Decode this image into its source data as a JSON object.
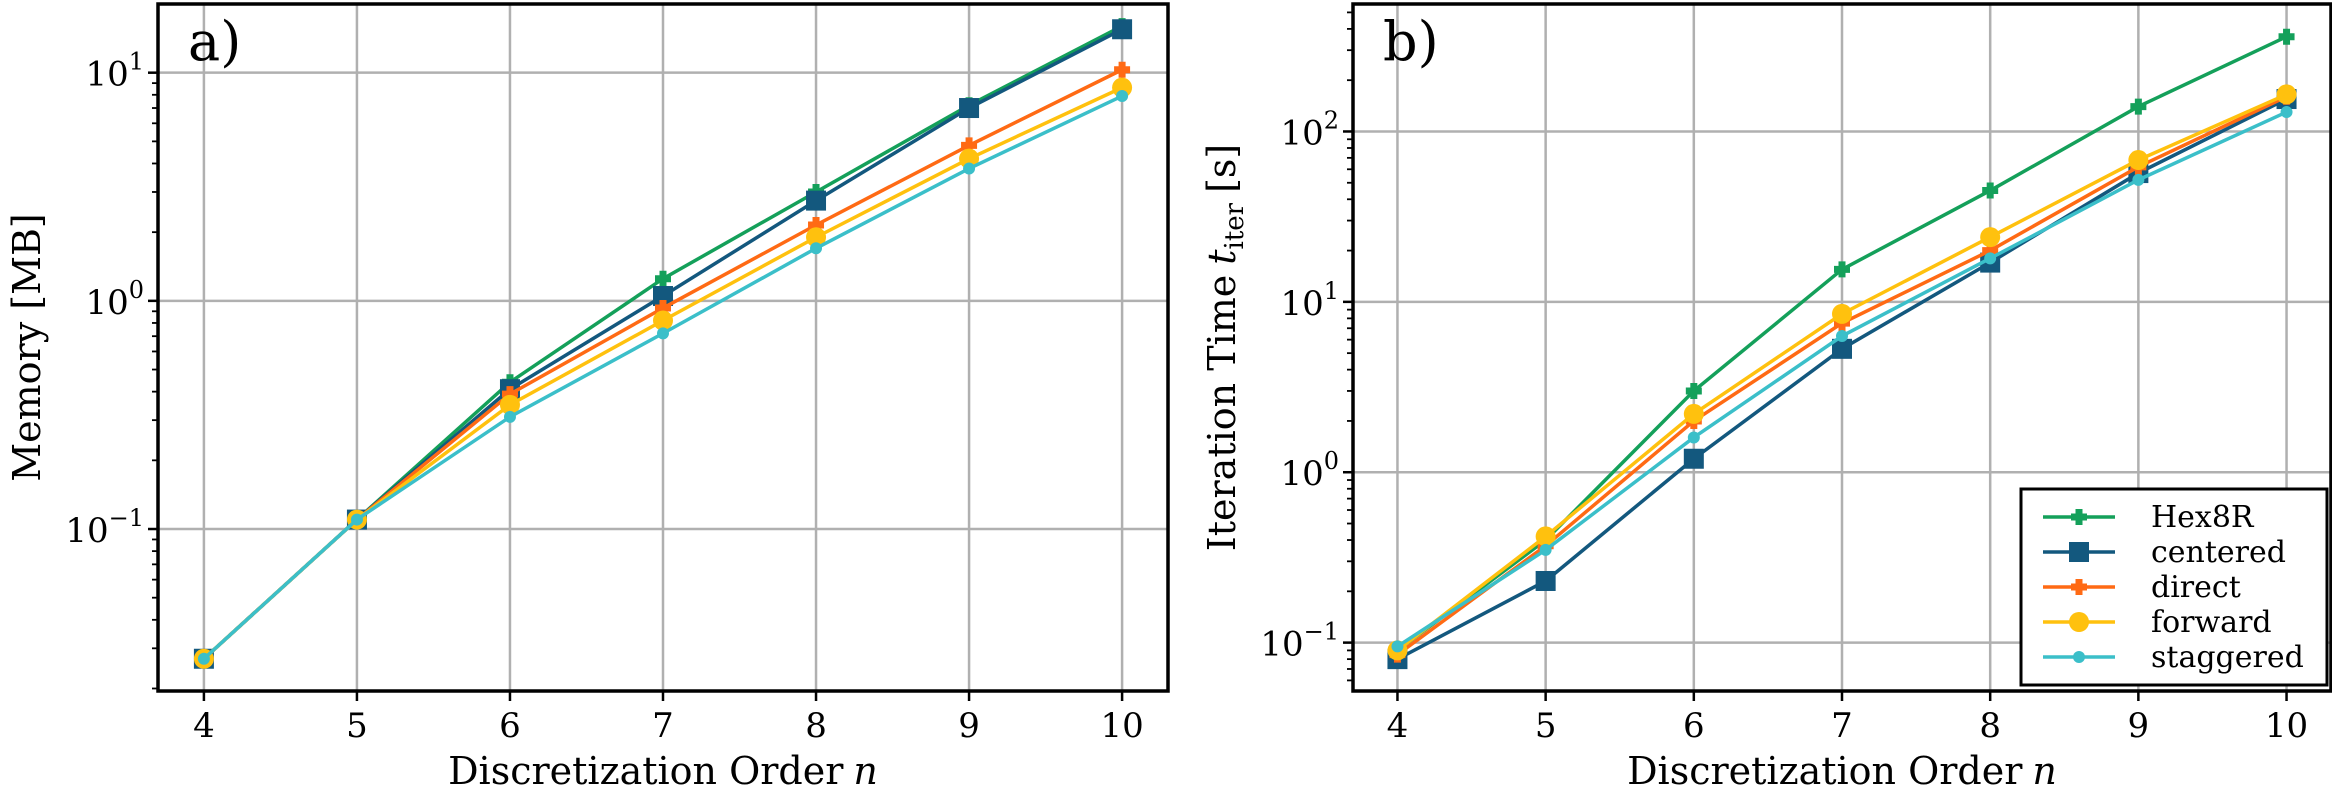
{
  "chart_data": [
    {
      "type": "line",
      "panel_label": "a)",
      "xlabel": "Discretization Order",
      "xlabel_var": "n",
      "ylabel": "Memory [MB]",
      "yscale": "log",
      "xlim": [
        3.7,
        10.3
      ],
      "ylim": [
        0.0195,
        20
      ],
      "x_ticks": [
        "4",
        "5",
        "6",
        "7",
        "8",
        "9",
        "10"
      ],
      "y_ticks": [
        {
          "value": 0.1,
          "base": "10",
          "exp": "−1"
        },
        {
          "value": 1,
          "base": "10",
          "exp": "0"
        },
        {
          "value": 10,
          "base": "10",
          "exp": "1"
        }
      ],
      "grid": true,
      "x": [
        4,
        5,
        6,
        7,
        8,
        9,
        10
      ],
      "series": [
        {
          "name": "Hex8R",
          "color": "#14a05a",
          "marker": "plus",
          "values": [
            0.027,
            0.11,
            0.44,
            1.25,
            3.0,
            7.2,
            16.0
          ]
        },
        {
          "name": "centered",
          "color": "#13587e",
          "marker": "square",
          "values": [
            0.027,
            0.11,
            0.41,
            1.05,
            2.75,
            7.0,
            15.5
          ]
        },
        {
          "name": "direct",
          "color": "#ff6a14",
          "marker": "plus",
          "values": [
            0.027,
            0.11,
            0.39,
            0.93,
            2.15,
            4.8,
            10.3
          ]
        },
        {
          "name": "forward",
          "color": "#ffc10e",
          "marker": "circle",
          "values": [
            0.027,
            0.11,
            0.35,
            0.82,
            1.9,
            4.2,
            8.6
          ]
        },
        {
          "name": "staggered",
          "color": "#3bbfc9",
          "marker": "dot",
          "values": [
            0.027,
            0.11,
            0.31,
            0.72,
            1.7,
            3.8,
            7.9
          ]
        }
      ]
    },
    {
      "type": "line",
      "panel_label": "b)",
      "xlabel": "Discretization Order",
      "xlabel_var": "n",
      "ylabel": "Iteration Time",
      "ylabel_var": "t",
      "ylabel_sub": "iter",
      "ylabel_unit": "[s]",
      "yscale": "log",
      "xlim": [
        3.7,
        10.3
      ],
      "ylim": [
        0.052,
        560
      ],
      "x_ticks": [
        "4",
        "5",
        "6",
        "7",
        "8",
        "9",
        "10"
      ],
      "y_ticks": [
        {
          "value": 0.1,
          "base": "10",
          "exp": "−1"
        },
        {
          "value": 1,
          "base": "10",
          "exp": "0"
        },
        {
          "value": 10,
          "base": "10",
          "exp": "1"
        },
        {
          "value": 100,
          "base": "10",
          "exp": "2"
        }
      ],
      "grid": true,
      "legend_position": "bottom-right",
      "x": [
        4,
        5,
        6,
        7,
        8,
        9,
        10
      ],
      "series": [
        {
          "name": "Hex8R",
          "color": "#14a05a",
          "marker": "plus",
          "values": [
            0.09,
            0.4,
            3.0,
            15.5,
            45,
            140,
            360
          ]
        },
        {
          "name": "centered",
          "color": "#13587e",
          "marker": "square",
          "values": [
            0.08,
            0.23,
            1.2,
            5.3,
            17,
            57,
            155
          ]
        },
        {
          "name": "direct",
          "color": "#ff6a14",
          "marker": "plus",
          "values": [
            0.085,
            0.37,
            2.0,
            7.5,
            20,
            62,
            160
          ]
        },
        {
          "name": "forward",
          "color": "#ffc10e",
          "marker": "circle",
          "values": [
            0.09,
            0.42,
            2.2,
            8.5,
            24,
            68,
            165
          ]
        },
        {
          "name": "staggered",
          "color": "#3bbfc9",
          "marker": "dot",
          "values": [
            0.095,
            0.35,
            1.6,
            6.3,
            18,
            52,
            130
          ]
        }
      ]
    }
  ]
}
